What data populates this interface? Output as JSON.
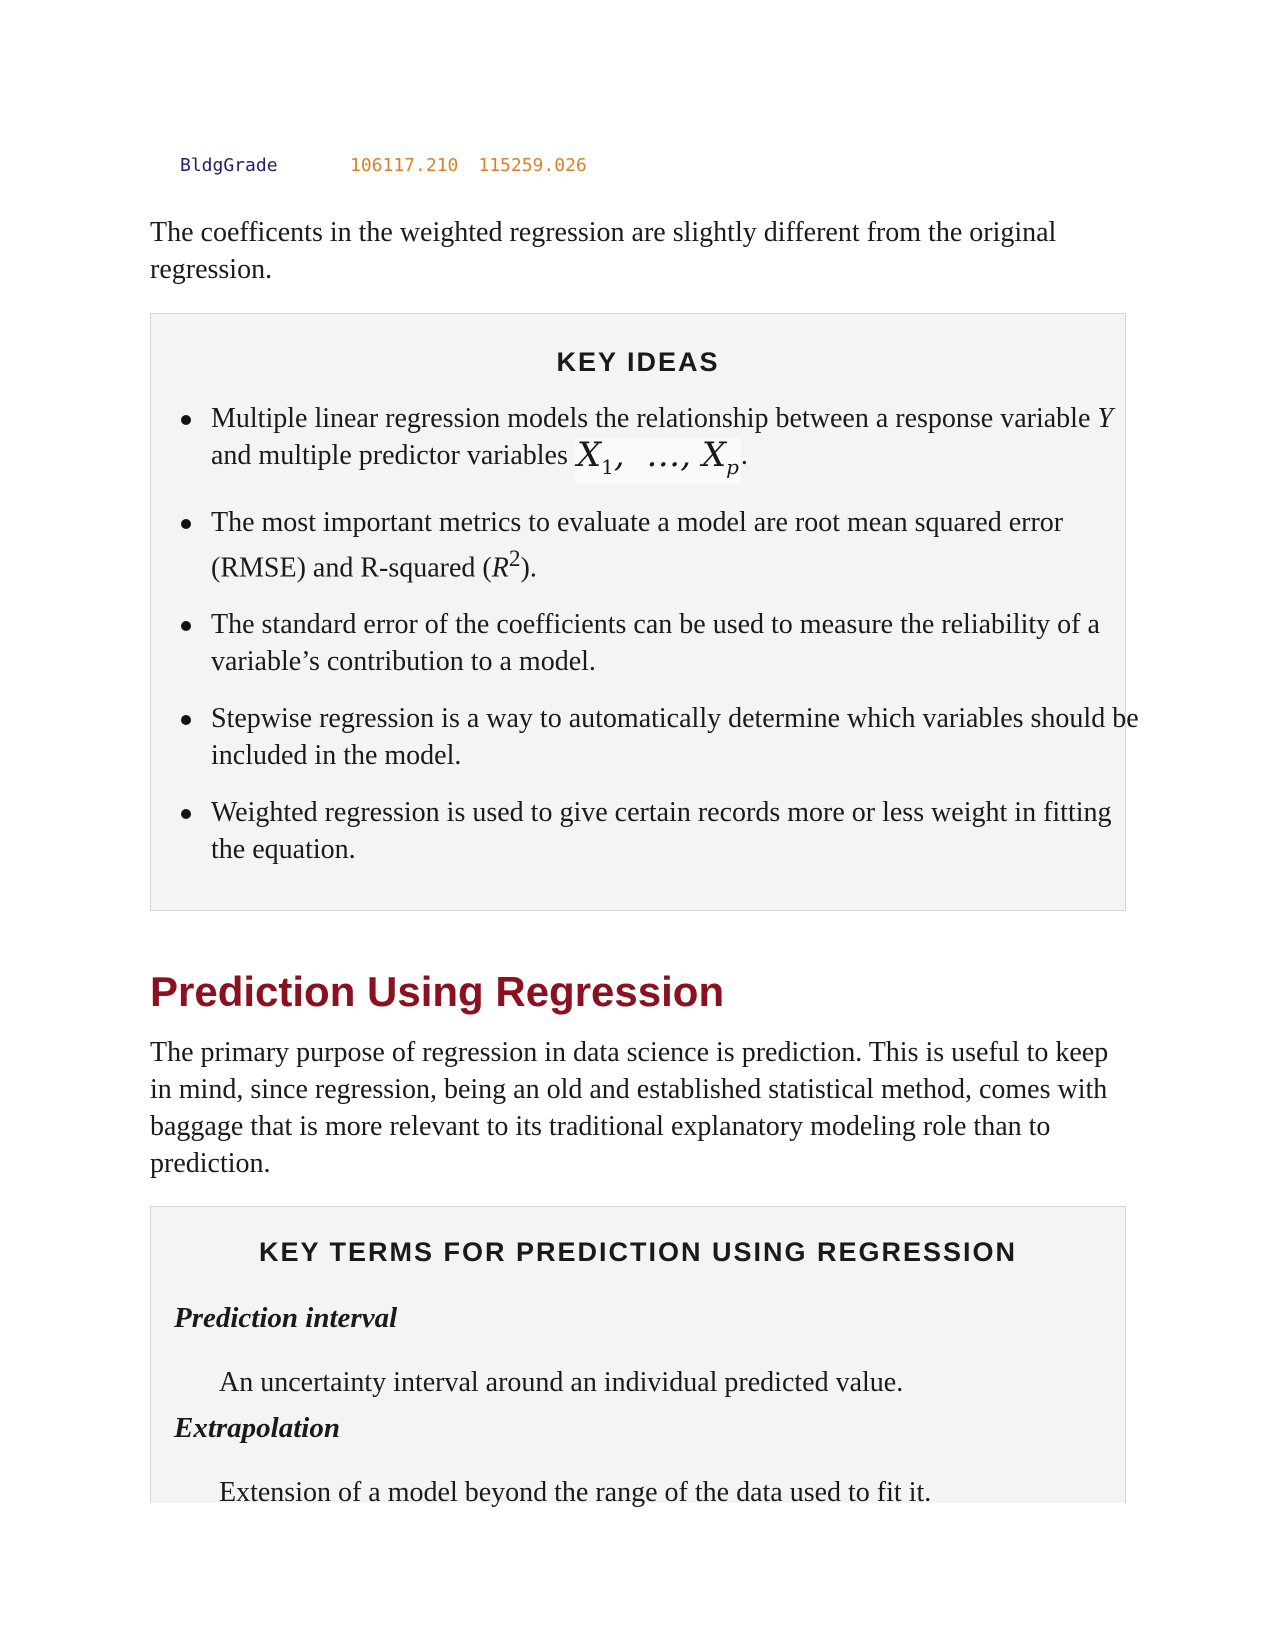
{
  "code_output": {
    "name": "BldgGrade",
    "value1": "106117.210",
    "value2": "115259.026"
  },
  "para1": "The coefficents in the weighted regression are slightly different from the original regression.",
  "key_ideas": {
    "title": "KEY IDEAS",
    "item1_text": "Multiple linear regression models the relationship between a response variable ",
    "item1_var": "Y",
    "item1_mid": " and multiple predictor variables ",
    "item1_end": ".",
    "item2_text": "The most important metrics to evaluate a model are root mean squared error (RMSE) and R-squared (",
    "item2_var": "R",
    "item2_sup": "2",
    "item2_end": ").",
    "item3": "The standard error of the coefficients can be used to measure the reliability of a variable’s contribution to a model.",
    "item4": "Stepwise regression is a way to automatically determine which variables should be included in the model.",
    "item5": "Weighted regression is used to give certain records more or less weight in fitting the equation."
  },
  "section": {
    "heading": "Prediction Using Regression",
    "para": "The primary purpose of regression in data science is prediction. This is useful to keep in mind, since regression, being an old and established statistical method, comes with baggage that is more relevant to its traditional explanatory modeling role than to prediction."
  },
  "key_terms": {
    "title": "KEY TERMS FOR PREDICTION USING REGRESSION",
    "term1": "Prediction interval",
    "def1": "An uncertainty interval around an individual predicted value.",
    "term2": "Extrapolation",
    "def2": "Extension of a model beyond the range of the data used to fit it."
  }
}
